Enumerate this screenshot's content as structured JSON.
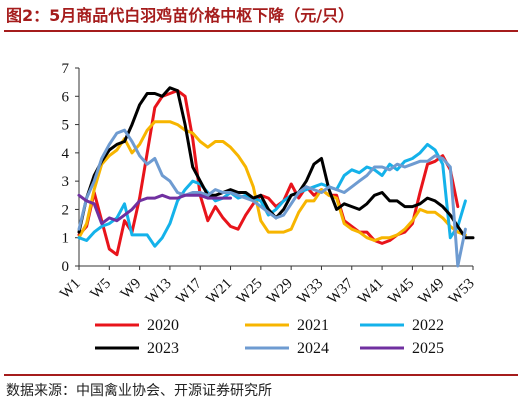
{
  "title": "图2：5月商品代白羽鸡苗价格中枢下降（元/只）",
  "source": "数据来源：中国禽业协会、开源证券研究所",
  "chart_data": {
    "type": "line",
    "title": "图2：5月商品代白羽鸡苗价格中枢下降（元/只）",
    "xlabel": "",
    "ylabel": "",
    "ylim": [
      0,
      7
    ],
    "xlim": [
      1,
      53
    ],
    "yticks": [
      0,
      1,
      2,
      3,
      4,
      5,
      6,
      7
    ],
    "xticks": [
      "W1",
      "W5",
      "W9",
      "W13",
      "W17",
      "W21",
      "W25",
      "W29",
      "W33",
      "W37",
      "W41",
      "W45",
      "W49",
      "W53"
    ],
    "xtick_weeks": [
      1,
      5,
      9,
      13,
      17,
      21,
      25,
      29,
      33,
      37,
      41,
      45,
      49,
      53
    ],
    "grid": false,
    "legend_position": "bottom",
    "series": [
      {
        "name": "2020",
        "color": "#e8141b",
        "points": [
          [
            1,
            1.1
          ],
          [
            2,
            1.4
          ],
          [
            3,
            2.6
          ],
          [
            4,
            1.6
          ],
          [
            5,
            0.6
          ],
          [
            6,
            0.4
          ],
          [
            7,
            1.6
          ],
          [
            8,
            1.2
          ],
          [
            9,
            2.4
          ],
          [
            10,
            4.0
          ],
          [
            11,
            5.6
          ],
          [
            12,
            6.0
          ],
          [
            13,
            6.1
          ],
          [
            14,
            6.2
          ],
          [
            15,
            6.0
          ],
          [
            16,
            4.5
          ],
          [
            17,
            2.5
          ],
          [
            18,
            1.6
          ],
          [
            19,
            2.1
          ],
          [
            20,
            1.7
          ],
          [
            21,
            1.4
          ],
          [
            22,
            1.3
          ],
          [
            23,
            1.8
          ],
          [
            24,
            2.2
          ],
          [
            25,
            2.5
          ],
          [
            26,
            2.4
          ],
          [
            27,
            2.1
          ],
          [
            28,
            2.3
          ],
          [
            29,
            2.9
          ],
          [
            30,
            2.4
          ],
          [
            31,
            2.8
          ],
          [
            32,
            2.5
          ],
          [
            33,
            2.7
          ],
          [
            34,
            2.5
          ],
          [
            35,
            2.5
          ],
          [
            36,
            1.6
          ],
          [
            37,
            1.4
          ],
          [
            38,
            1.2
          ],
          [
            39,
            1.2
          ],
          [
            40,
            0.9
          ],
          [
            41,
            0.8
          ],
          [
            42,
            0.9
          ],
          [
            43,
            1.1
          ],
          [
            44,
            1.2
          ],
          [
            45,
            1.5
          ],
          [
            46,
            2.6
          ],
          [
            47,
            3.6
          ],
          [
            48,
            3.7
          ],
          [
            49,
            3.9
          ],
          [
            50,
            3.4
          ],
          [
            51,
            2.1
          ]
        ]
      },
      {
        "name": "2021",
        "color": "#f7b500",
        "points": [
          [
            1,
            1.0
          ],
          [
            2,
            1.5
          ],
          [
            3,
            2.7
          ],
          [
            4,
            3.6
          ],
          [
            5,
            3.9
          ],
          [
            6,
            4.1
          ],
          [
            7,
            4.5
          ],
          [
            8,
            4.0
          ],
          [
            9,
            4.3
          ],
          [
            10,
            4.8
          ],
          [
            11,
            5.1
          ],
          [
            12,
            5.1
          ],
          [
            13,
            5.1
          ],
          [
            14,
            5.0
          ],
          [
            15,
            4.8
          ],
          [
            16,
            4.7
          ],
          [
            17,
            4.4
          ],
          [
            18,
            4.2
          ],
          [
            19,
            4.4
          ],
          [
            20,
            4.4
          ],
          [
            21,
            4.2
          ],
          [
            22,
            3.9
          ],
          [
            23,
            3.5
          ],
          [
            24,
            2.8
          ],
          [
            25,
            1.6
          ],
          [
            26,
            1.2
          ],
          [
            27,
            1.2
          ],
          [
            28,
            1.2
          ],
          [
            29,
            1.3
          ],
          [
            30,
            1.9
          ],
          [
            31,
            2.3
          ],
          [
            32,
            2.3
          ],
          [
            33,
            2.7
          ],
          [
            34,
            2.5
          ],
          [
            35,
            2.4
          ],
          [
            36,
            1.5
          ],
          [
            37,
            1.3
          ],
          [
            38,
            1.2
          ],
          [
            39,
            1.0
          ],
          [
            40,
            0.9
          ],
          [
            41,
            1.0
          ],
          [
            42,
            1.0
          ],
          [
            43,
            1.1
          ],
          [
            44,
            1.3
          ],
          [
            45,
            1.6
          ],
          [
            46,
            2.0
          ],
          [
            47,
            1.9
          ],
          [
            48,
            1.9
          ],
          [
            49,
            1.7
          ],
          [
            50,
            1.4
          ],
          [
            51,
            1.2
          ],
          [
            52,
            1.1
          ]
        ]
      },
      {
        "name": "2022",
        "color": "#14b2ea",
        "points": [
          [
            1,
            1.0
          ],
          [
            2,
            0.9
          ],
          [
            3,
            1.2
          ],
          [
            4,
            1.4
          ],
          [
            5,
            1.5
          ],
          [
            6,
            1.7
          ],
          [
            7,
            2.2
          ],
          [
            8,
            1.1
          ],
          [
            9,
            1.1
          ],
          [
            10,
            1.1
          ],
          [
            11,
            0.7
          ],
          [
            12,
            1.0
          ],
          [
            13,
            1.5
          ],
          [
            14,
            2.3
          ],
          [
            15,
            2.7
          ],
          [
            16,
            3.0
          ],
          [
            17,
            2.9
          ],
          [
            18,
            2.6
          ],
          [
            19,
            2.3
          ],
          [
            20,
            2.4
          ],
          [
            21,
            2.6
          ],
          [
            22,
            2.4
          ],
          [
            23,
            2.5
          ],
          [
            24,
            2.4
          ],
          [
            25,
            2.3
          ],
          [
            26,
            1.8
          ],
          [
            27,
            2.0
          ],
          [
            28,
            2.3
          ],
          [
            29,
            2.5
          ],
          [
            30,
            2.6
          ],
          [
            31,
            2.7
          ],
          [
            32,
            2.8
          ],
          [
            33,
            2.9
          ],
          [
            34,
            2.8
          ],
          [
            35,
            2.7
          ],
          [
            36,
            3.2
          ],
          [
            37,
            3.4
          ],
          [
            38,
            3.3
          ],
          [
            39,
            3.5
          ],
          [
            40,
            3.4
          ],
          [
            41,
            3.2
          ],
          [
            42,
            3.6
          ],
          [
            43,
            3.4
          ],
          [
            44,
            3.7
          ],
          [
            45,
            3.8
          ],
          [
            46,
            4.0
          ],
          [
            47,
            4.3
          ],
          [
            48,
            4.1
          ],
          [
            49,
            3.6
          ],
          [
            50,
            1.0
          ],
          [
            51,
            1.4
          ],
          [
            52,
            2.3
          ]
        ]
      },
      {
        "name": "2023",
        "color": "#000000",
        "points": [
          [
            1,
            1.2
          ],
          [
            2,
            2.4
          ],
          [
            3,
            3.2
          ],
          [
            4,
            3.7
          ],
          [
            5,
            4.1
          ],
          [
            6,
            4.3
          ],
          [
            7,
            4.4
          ],
          [
            8,
            5.0
          ],
          [
            9,
            5.7
          ],
          [
            10,
            6.1
          ],
          [
            11,
            6.1
          ],
          [
            12,
            6.0
          ],
          [
            13,
            6.3
          ],
          [
            14,
            6.2
          ],
          [
            15,
            5.0
          ],
          [
            16,
            3.5
          ],
          [
            17,
            3.0
          ],
          [
            18,
            2.5
          ],
          [
            19,
            2.5
          ],
          [
            20,
            2.6
          ],
          [
            21,
            2.7
          ],
          [
            22,
            2.6
          ],
          [
            23,
            2.6
          ],
          [
            24,
            2.4
          ],
          [
            25,
            2.5
          ],
          [
            26,
            2.0
          ],
          [
            27,
            1.7
          ],
          [
            28,
            2.0
          ],
          [
            29,
            2.5
          ],
          [
            30,
            2.6
          ],
          [
            31,
            3.0
          ],
          [
            32,
            3.6
          ],
          [
            33,
            3.8
          ],
          [
            34,
            2.7
          ],
          [
            35,
            2.0
          ],
          [
            36,
            2.2
          ],
          [
            37,
            2.1
          ],
          [
            38,
            2.0
          ],
          [
            39,
            2.2
          ],
          [
            40,
            2.5
          ],
          [
            41,
            2.6
          ],
          [
            42,
            2.3
          ],
          [
            43,
            2.3
          ],
          [
            44,
            2.1
          ],
          [
            45,
            2.1
          ],
          [
            46,
            2.2
          ],
          [
            47,
            2.4
          ],
          [
            48,
            2.3
          ],
          [
            49,
            2.1
          ],
          [
            50,
            1.8
          ],
          [
            51,
            1.4
          ],
          [
            52,
            1.0
          ],
          [
            53,
            1.0
          ]
        ]
      },
      {
        "name": "2024",
        "color": "#6e9bd1",
        "points": [
          [
            1,
            1.3
          ],
          [
            2,
            2.4
          ],
          [
            3,
            3.0
          ],
          [
            4,
            3.8
          ],
          [
            5,
            4.3
          ],
          [
            6,
            4.7
          ],
          [
            7,
            4.8
          ],
          [
            8,
            4.4
          ],
          [
            9,
            3.9
          ],
          [
            10,
            3.6
          ],
          [
            11,
            3.8
          ],
          [
            12,
            3.2
          ],
          [
            13,
            3.0
          ],
          [
            14,
            2.6
          ],
          [
            15,
            2.5
          ],
          [
            16,
            2.6
          ],
          [
            17,
            2.6
          ],
          [
            18,
            2.5
          ],
          [
            19,
            2.7
          ],
          [
            20,
            2.6
          ],
          [
            21,
            2.6
          ],
          [
            22,
            2.5
          ],
          [
            23,
            2.4
          ],
          [
            24,
            2.3
          ],
          [
            25,
            2.1
          ],
          [
            26,
            1.9
          ],
          [
            27,
            1.7
          ],
          [
            28,
            1.8
          ],
          [
            29,
            2.2
          ],
          [
            30,
            2.6
          ],
          [
            31,
            2.8
          ],
          [
            32,
            2.7
          ],
          [
            33,
            2.6
          ],
          [
            34,
            2.8
          ],
          [
            35,
            2.7
          ],
          [
            36,
            2.6
          ],
          [
            37,
            2.8
          ],
          [
            38,
            3.0
          ],
          [
            39,
            3.2
          ],
          [
            40,
            3.5
          ],
          [
            41,
            3.5
          ],
          [
            42,
            3.4
          ],
          [
            43,
            3.6
          ],
          [
            44,
            3.5
          ],
          [
            45,
            3.6
          ],
          [
            46,
            3.7
          ],
          [
            47,
            3.7
          ],
          [
            48,
            3.9
          ],
          [
            49,
            3.8
          ],
          [
            50,
            3.5
          ],
          [
            51,
            0.0
          ],
          [
            52,
            1.3
          ]
        ]
      },
      {
        "name": "2025",
        "color": "#7030a0",
        "points": [
          [
            1,
            2.5
          ],
          [
            2,
            2.3
          ],
          [
            3,
            2.2
          ],
          [
            4,
            1.5
          ],
          [
            5,
            1.7
          ],
          [
            6,
            1.6
          ],
          [
            7,
            1.8
          ],
          [
            8,
            2.0
          ],
          [
            9,
            2.3
          ],
          [
            10,
            2.4
          ],
          [
            11,
            2.4
          ],
          [
            12,
            2.5
          ],
          [
            13,
            2.4
          ],
          [
            14,
            2.4
          ],
          [
            15,
            2.5
          ],
          [
            16,
            2.5
          ],
          [
            17,
            2.5
          ],
          [
            18,
            2.4
          ],
          [
            19,
            2.4
          ],
          [
            20,
            2.4
          ],
          [
            21,
            2.4
          ]
        ]
      }
    ]
  }
}
